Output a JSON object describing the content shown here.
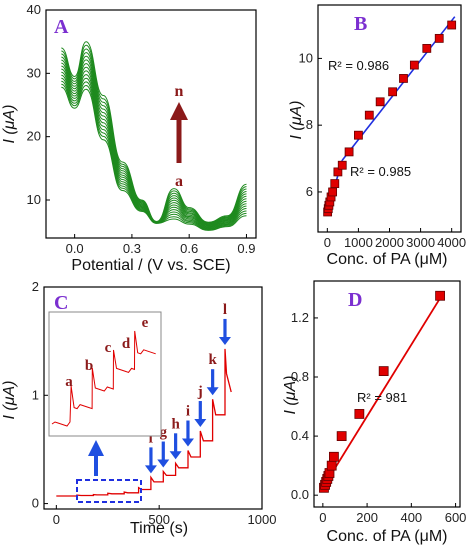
{
  "figure": {
    "panels": [
      {
        "id": "A",
        "letter": "A",
        "xlabel": "Potential / (V vs. SCE)",
        "ylabel": "I (μA)",
        "xticks": [
          "0.0",
          "0.3",
          "0.6",
          "0.9"
        ],
        "yticks": [
          "10",
          "20",
          "30",
          "40"
        ],
        "arrow_top_label": "n",
        "arrow_bottom_label": "a"
      },
      {
        "id": "B",
        "letter": "B",
        "xlabel": "Conc. of PA (μM)",
        "ylabel": "I (μA)",
        "xticks": [
          "0",
          "1000",
          "2000",
          "3000",
          "4000"
        ],
        "yticks": [
          "6",
          "8",
          "10"
        ],
        "r2_upper": "R² = 0.986",
        "r2_lower": "R² = 0.985"
      },
      {
        "id": "C",
        "letter": "C",
        "xlabel": "Time (s)",
        "ylabel": "I (μA)",
        "xticks": [
          "0",
          "500",
          "1000"
        ],
        "yticks": [
          "0",
          "1",
          "2"
        ],
        "step_labels": [
          "f",
          "g",
          "h",
          "i",
          "j",
          "k",
          "l"
        ],
        "inset_labels": [
          "a",
          "b",
          "c",
          "d",
          "e"
        ]
      },
      {
        "id": "D",
        "letter": "D",
        "xlabel": "Conc. of PA (μM)",
        "ylabel": "I (μA)",
        "xticks": [
          "0",
          "200",
          "400",
          "600"
        ],
        "yticks": [
          "0.0",
          "0.4",
          "0.8",
          "1.2"
        ],
        "r2": "R² = 981"
      }
    ]
  },
  "colors": {
    "cv_curves": "#1e8a1e",
    "marker_fill": "#e00000",
    "fit_blue": "#1f2fe0",
    "fit_red": "#e00000",
    "amperometry": "#e00000",
    "arrow_blue": "#1f4fe0",
    "arrow_dark_red": "#8b1a1a",
    "panel_letter": "#7b2fd0"
  },
  "chart_data": [
    {
      "panel": "A",
      "type": "line",
      "xlim": [
        -0.15,
        0.95
      ],
      "ylim": [
        4,
        40
      ],
      "series_count": 14,
      "x": [
        -0.07,
        0.0,
        0.06,
        0.15,
        0.25,
        0.35,
        0.43,
        0.52,
        0.6,
        0.7,
        0.8,
        0.9
      ],
      "series": [
        {
          "values": [
            27.8,
            24.5,
            27.5,
            19.5,
            11.5,
            8.2,
            6.3,
            7.0,
            6.2,
            5.2,
            5.8,
            7.5
          ]
        },
        {
          "values": [
            34.0,
            29.5,
            35.0,
            26.5,
            16.0,
            10.0,
            6.6,
            11.8,
            8.8,
            6.5,
            7.5,
            12.5
          ]
        }
      ]
    },
    {
      "panel": "B",
      "type": "scatter",
      "xlim": [
        -300,
        4300
      ],
      "ylim": [
        4.8,
        11.6
      ],
      "x": [
        10,
        30,
        50,
        80,
        120,
        170,
        240,
        340,
        480,
        700,
        1000,
        1350,
        1700,
        2100,
        2450,
        2800,
        3200,
        3600,
        4000
      ],
      "y": [
        5.4,
        5.5,
        5.6,
        5.7,
        5.85,
        6.0,
        6.25,
        6.6,
        6.8,
        7.2,
        7.7,
        8.3,
        8.7,
        9.0,
        9.4,
        9.8,
        10.3,
        10.6,
        11.0
      ],
      "fit_lines": [
        {
          "label": "R² = 0.985",
          "from": [
            0,
            5.4
          ],
          "to": [
            480,
            6.95
          ]
        },
        {
          "label": "R² = 0.986",
          "from": [
            480,
            6.95
          ],
          "to": [
            4100,
            11.25
          ]
        }
      ]
    },
    {
      "panel": "C",
      "type": "line",
      "xlim": [
        -60,
        1000
      ],
      "ylim": [
        -0.05,
        2.0
      ],
      "steps": [
        {
          "t": 0,
          "base": 0.07
        },
        {
          "t": 100,
          "base": 0.075
        },
        {
          "t": 180,
          "base": 0.08
        },
        {
          "t": 250,
          "base": 0.09
        },
        {
          "t": 330,
          "base": 0.1
        },
        {
          "t": 400,
          "base": 0.13
        },
        {
          "t": 460,
          "base": 0.2
        },
        {
          "t": 520,
          "base": 0.26
        },
        {
          "t": 580,
          "base": 0.33
        },
        {
          "t": 640,
          "base": 0.43
        },
        {
          "t": 700,
          "base": 0.58
        },
        {
          "t": 760,
          "base": 0.82
        },
        {
          "t": 820,
          "base": 1.2
        }
      ],
      "end_t": 850,
      "end_y": 1.03
    },
    {
      "panel": "D",
      "type": "scatter",
      "xlim": [
        -40,
        620
      ],
      "ylim": [
        -0.08,
        1.45
      ],
      "x": [
        5,
        10,
        15,
        20,
        25,
        30,
        40,
        50,
        85,
        165,
        275,
        530
      ],
      "y": [
        0.05,
        0.07,
        0.09,
        0.11,
        0.13,
        0.15,
        0.2,
        0.26,
        0.4,
        0.55,
        0.84,
        1.35
      ],
      "fit_line": {
        "label": "R² = 981",
        "from": [
          0,
          0.05
        ],
        "to": [
          545,
          1.37
        ]
      }
    }
  ]
}
